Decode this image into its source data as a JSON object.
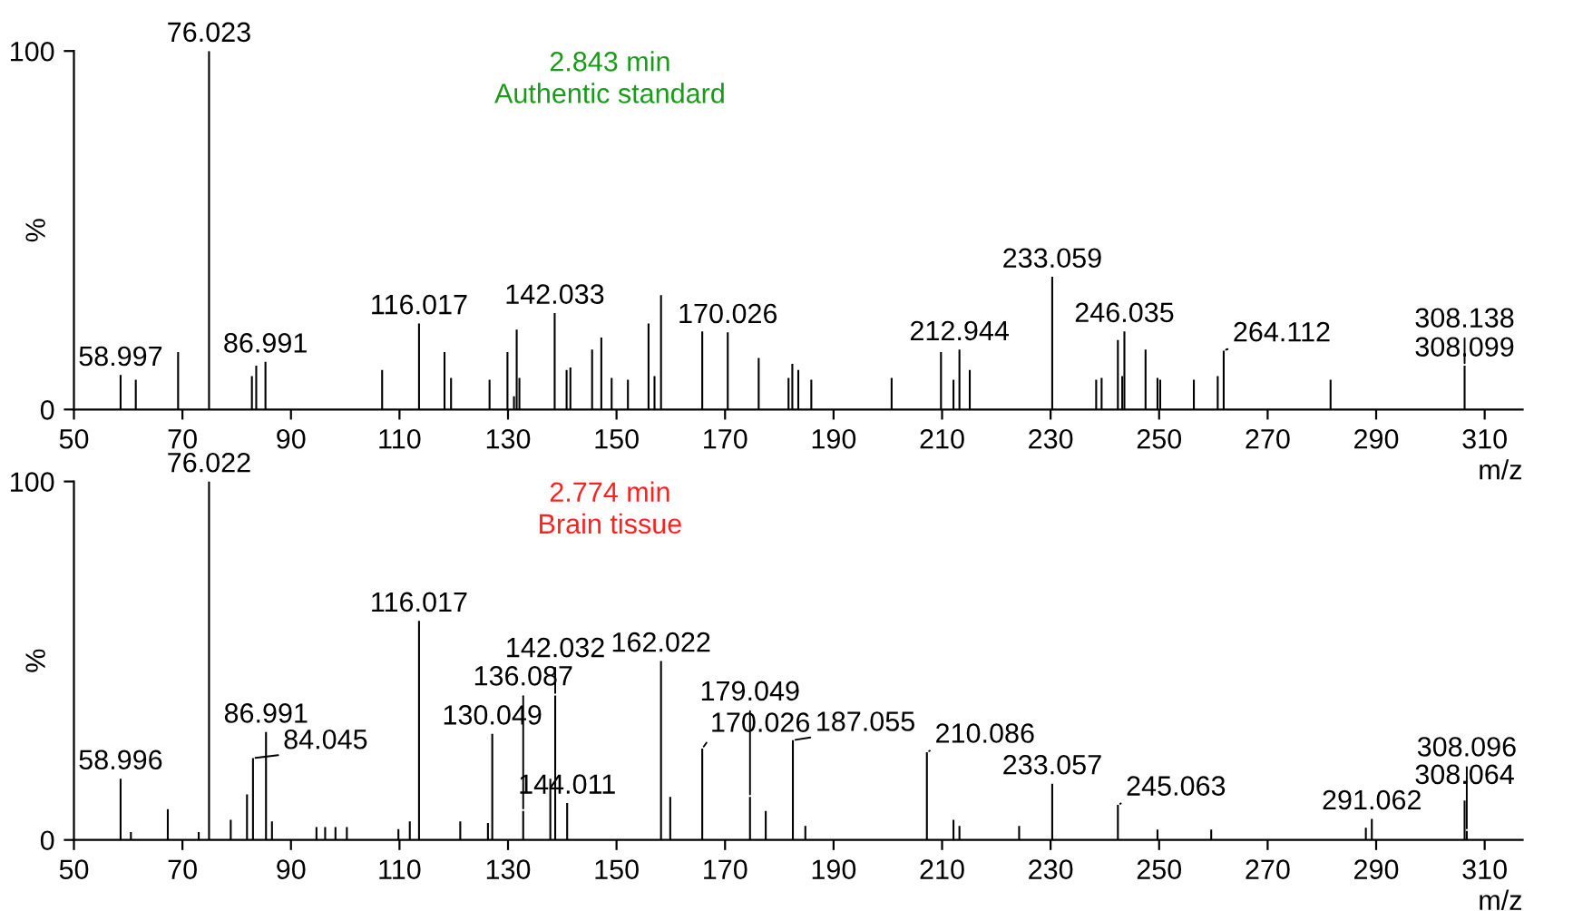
{
  "chart_data": [
    {
      "type": "bar",
      "title": "2.843 min\nAuthentic standard",
      "xlabel": "m/z",
      "ylabel": "%",
      "xlim": [
        50,
        317
      ],
      "xticks": [
        50,
        70,
        90,
        110,
        130,
        150,
        170,
        190,
        210,
        230,
        250,
        270,
        290,
        310
      ],
      "ylim": [
        0,
        100
      ],
      "yticks": [
        0,
        100
      ],
      "grid": false,
      "legend": false,
      "series": [
        {
          "color": "#000000",
          "x": [
            58.6,
            61.4,
            69.2,
            74.9,
            82.8,
            83.6,
            85.3,
            106.8,
            113.6,
            118.3,
            119.5,
            126.6,
            129.9,
            131.1,
            131.6,
            132.1,
            138.6,
            140.8,
            141.5,
            145.5,
            147.2,
            149.1,
            152.1,
            155.9,
            157.0,
            158.2,
            165.8,
            170.5,
            176.2,
            181.7,
            182.4,
            183.5,
            185.9,
            200.7,
            209.8,
            212.1,
            213.2,
            215.1,
            230.3,
            238.4,
            239.4,
            242.4,
            243.2,
            243.6,
            247.5,
            249.7,
            250.2,
            256.4,
            260.8,
            261.9,
            281.6,
            306.3
          ],
          "values": [
            9.6,
            8.3,
            16,
            100,
            9.3,
            12.2,
            13.3,
            11,
            24,
            16,
            8.8,
            8.3,
            16,
            3.7,
            22.3,
            8.8,
            26.9,
            11,
            11.7,
            16.7,
            20.1,
            8.8,
            8.3,
            24,
            9.3,
            31.9,
            21.8,
            21.5,
            14.4,
            8.8,
            12.7,
            11,
            8.3,
            8.8,
            16,
            8.3,
            16.7,
            11,
            37,
            8.3,
            8.8,
            19.4,
            9.3,
            21.8,
            16.7,
            8.8,
            8.3,
            8.3,
            9.3,
            16.4,
            8.3,
            12.2
          ]
        }
      ],
      "annotations": [
        {
          "text": "58.997",
          "x": 58.6,
          "y": 9.6
        },
        {
          "text": "76.023",
          "x": 74.9,
          "y": 100
        },
        {
          "text": "86.991",
          "x": 85.3,
          "y": 13.3
        },
        {
          "text": "116.017",
          "x": 113.6,
          "y": 24
        },
        {
          "text": "142.033",
          "x": 138.6,
          "y": 26.9
        },
        {
          "text": "170.026",
          "x": 170.5,
          "y": 21.5
        },
        {
          "text": "212.944",
          "x": 213.2,
          "y": 16.7
        },
        {
          "text": "233.059",
          "x": 230.3,
          "y": 37
        },
        {
          "text": "246.035",
          "x": 243.6,
          "y": 21.8
        },
        {
          "text": "264.112",
          "x": 261.9,
          "y": 16.4
        },
        {
          "text": "308.099",
          "x": 306.3,
          "y": 12.2
        },
        {
          "text": "308.138",
          "x": 306.3,
          "y": 12.2
        }
      ]
    },
    {
      "type": "bar",
      "title": "2.774 min\nBrain tissue",
      "xlabel": "m/z",
      "ylabel": "%",
      "xlim": [
        50,
        317
      ],
      "xticks": [
        50,
        70,
        90,
        110,
        130,
        150,
        170,
        190,
        210,
        230,
        250,
        270,
        290,
        310
      ],
      "ylim": [
        0,
        100
      ],
      "yticks": [
        0,
        100
      ],
      "grid": false,
      "legend": false,
      "series": [
        {
          "color": "#000000",
          "x": [
            58.6,
            60.5,
            67.3,
            73.0,
            74.9,
            78.9,
            81.9,
            83.0,
            85.4,
            86.5,
            94.7,
            96.3,
            98.2,
            100.3,
            109.8,
            111.9,
            113.6,
            121.2,
            126.3,
            127.1,
            132.8,
            137.8,
            138.7,
            140.9,
            158.2,
            159.9,
            165.8,
            174.6,
            177.5,
            182.5,
            184.8,
            207.2,
            212.1,
            213.2,
            224.2,
            230.3,
            242.4,
            249.7,
            259.6,
            288.1,
            289.2,
            306.3,
            306.7
          ],
          "values": [
            17.1,
            2.2,
            8.6,
            2.2,
            100,
            5.6,
            12.7,
            22.8,
            30.1,
            5.2,
            3.6,
            3.6,
            3.6,
            3.6,
            3.0,
            5.2,
            61.1,
            5.2,
            4.7,
            29.6,
            8.1,
            17.1,
            40.3,
            10.3,
            49.9,
            12.0,
            25.5,
            12.0,
            8.1,
            27.8,
            3.9,
            24.5,
            5.6,
            3.9,
            3.9,
            15.7,
            9.8,
            2.9,
            2.9,
            3.4,
            5.9,
            11.0,
            2.5
          ]
        }
      ],
      "annotations": [
        {
          "text": "58.996",
          "x": 58.6,
          "y": 17.1
        },
        {
          "text": "76.022",
          "x": 74.9,
          "y": 100
        },
        {
          "text": "84.045",
          "x": 83.0,
          "y": 22.8
        },
        {
          "text": "86.991",
          "x": 85.4,
          "y": 30.1
        },
        {
          "text": "116.017",
          "x": 113.6,
          "y": 61.1
        },
        {
          "text": "130.049",
          "x": 127.1,
          "y": 29.6
        },
        {
          "text": "136.087",
          "x": 132.8,
          "y": 8.1
        },
        {
          "text": "142.032",
          "x": 138.7,
          "y": 40.3
        },
        {
          "text": "144.011",
          "x": 140.9,
          "y": 10.3
        },
        {
          "text": "162.022",
          "x": 158.2,
          "y": 49.9
        },
        {
          "text": "170.026",
          "x": 165.8,
          "y": 25.5
        },
        {
          "text": "179.049",
          "x": 174.6,
          "y": 12.0
        },
        {
          "text": "187.055",
          "x": 182.5,
          "y": 27.8
        },
        {
          "text": "210.086",
          "x": 207.2,
          "y": 24.5
        },
        {
          "text": "233.057",
          "x": 230.3,
          "y": 15.7
        },
        {
          "text": "245.063",
          "x": 242.4,
          "y": 9.8
        },
        {
          "text": "291.062",
          "x": 289.2,
          "y": 5.9
        },
        {
          "text": "308.064",
          "x": 306.3,
          "y": 11.0
        },
        {
          "text": "308.096",
          "x": 306.7,
          "y": 2.5
        }
      ]
    }
  ]
}
